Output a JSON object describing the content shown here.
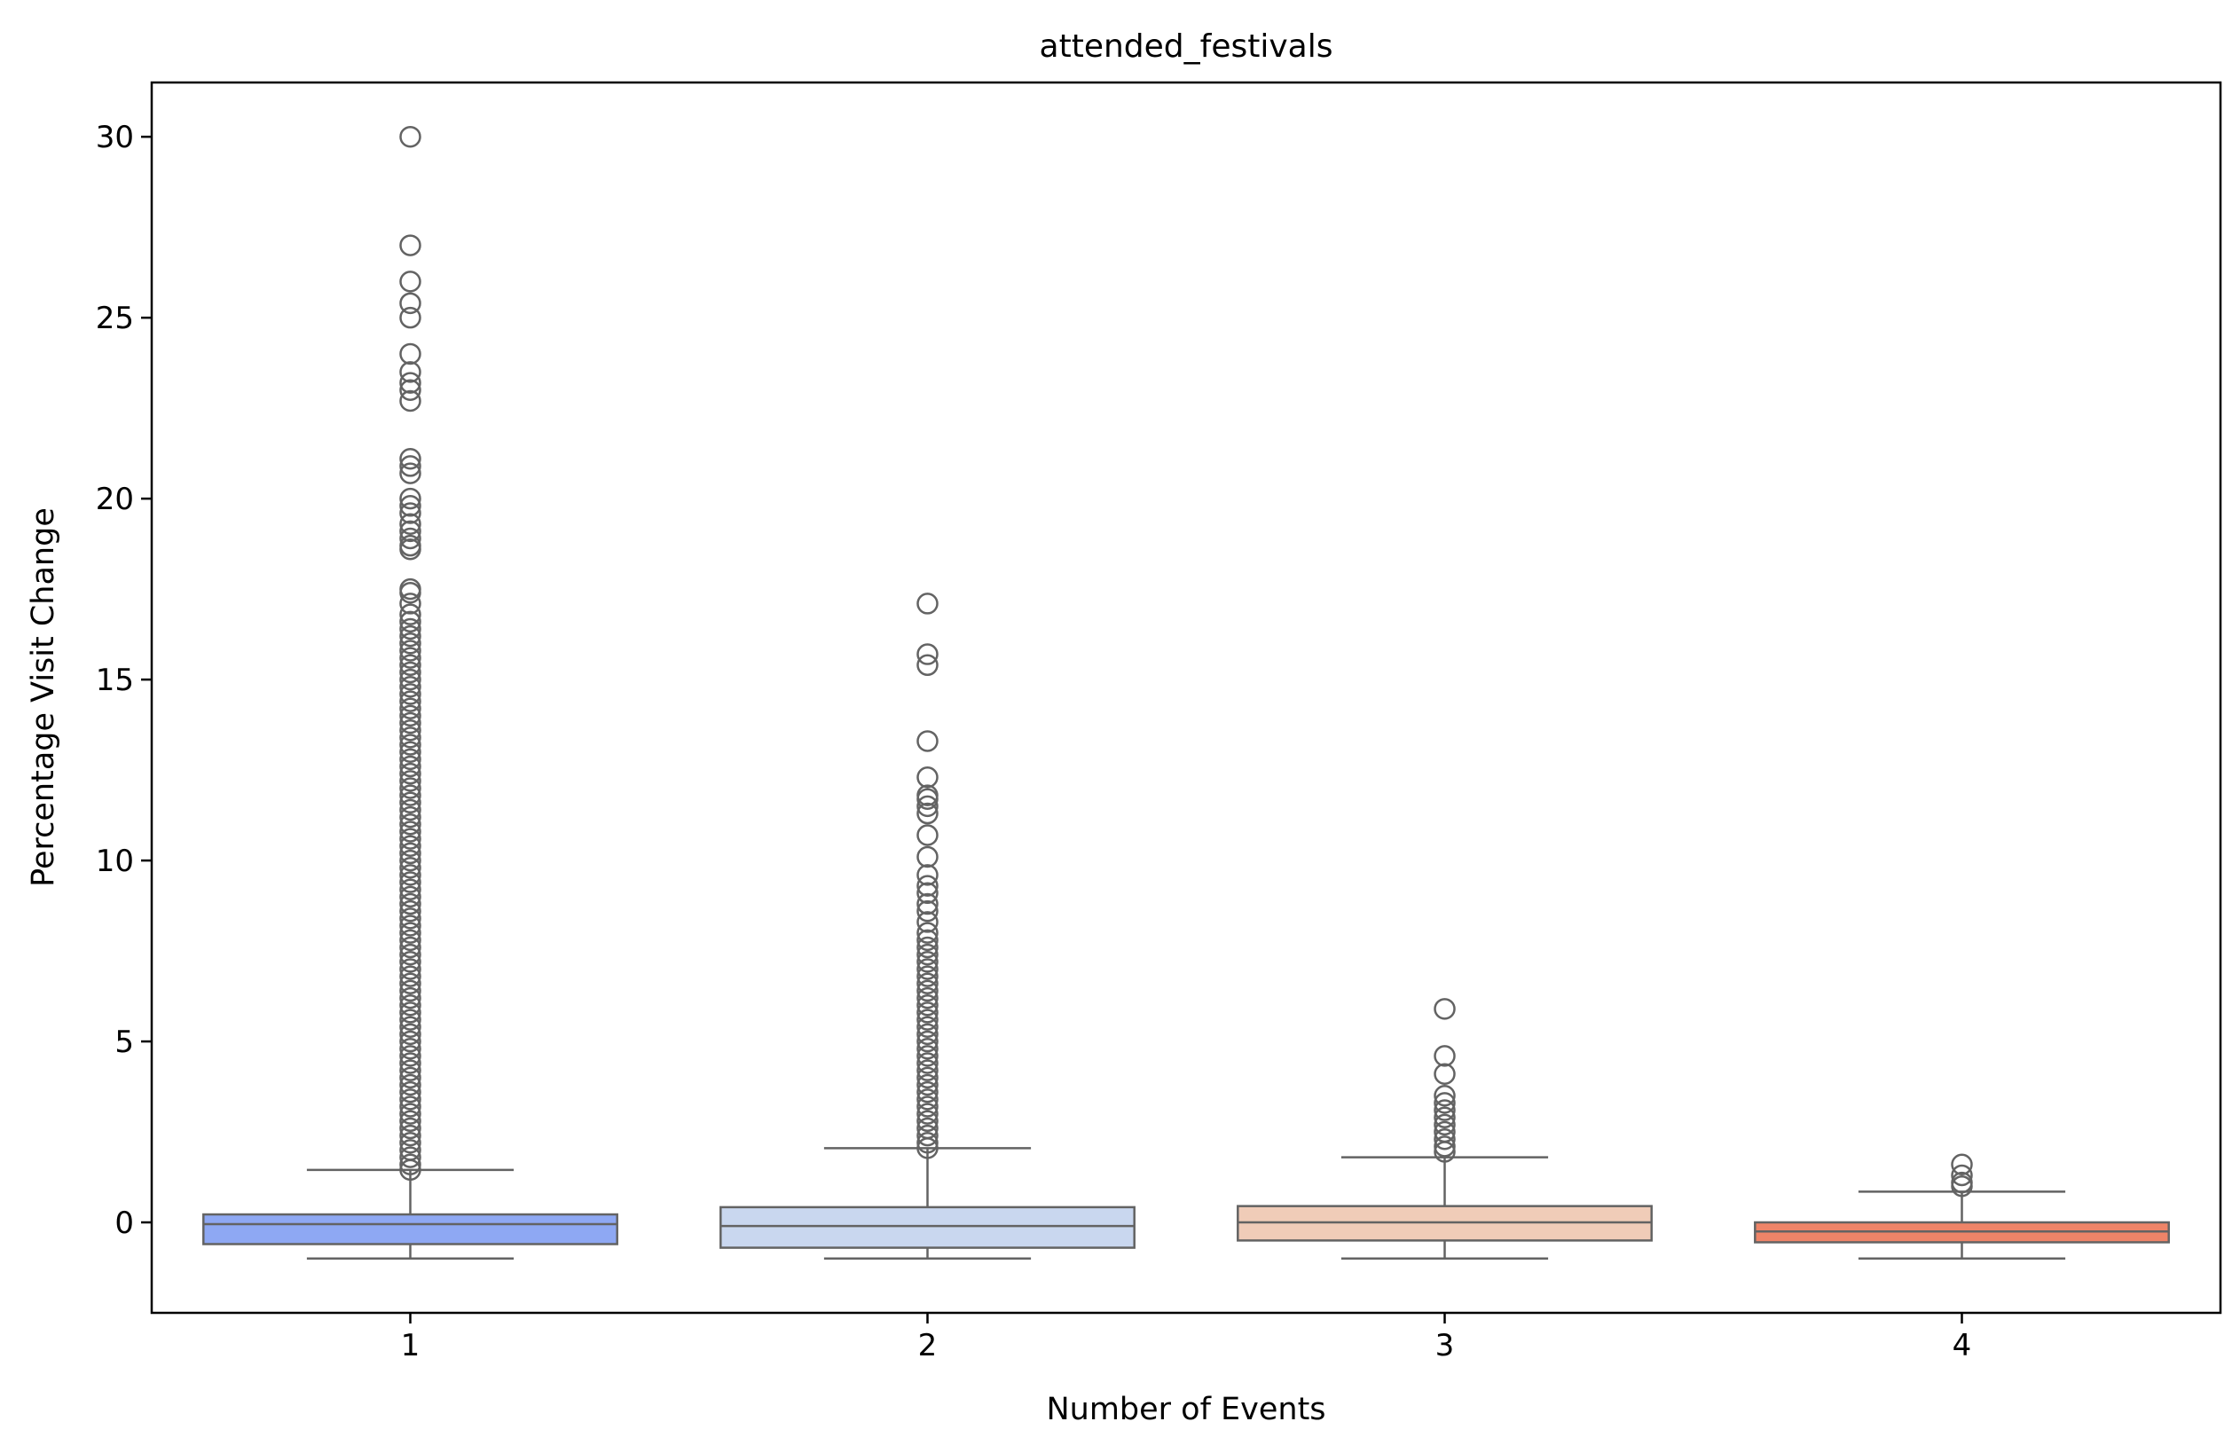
{
  "chart_data": {
    "type": "box",
    "title": "attended_festivals",
    "xlabel": "Number of Events",
    "ylabel": "Percentage Visit Change",
    "ylim": [
      -2.5,
      31.5
    ],
    "yticks": [
      0,
      5,
      10,
      15,
      20,
      25,
      30
    ],
    "grid": false,
    "legend": "none",
    "categories": [
      "1",
      "2",
      "3",
      "4"
    ],
    "boxes": [
      {
        "category": "1",
        "color": "#8EA8F3",
        "whisker_low": -1.0,
        "q1": -0.6,
        "median": -0.05,
        "q3": 0.22,
        "whisker_high": 1.45,
        "outliers": [
          30.0,
          27.0,
          26.0,
          25.4,
          25.0,
          24.0,
          23.5,
          23.2,
          23.0,
          22.7,
          21.1,
          20.9,
          20.7,
          20.0,
          19.8,
          19.6,
          19.3,
          19.1,
          18.9,
          18.7,
          18.6,
          17.5,
          17.4,
          17.1,
          16.8,
          16.6,
          16.4,
          16.2,
          16.0,
          15.8,
          15.6,
          15.4,
          15.2,
          15.0,
          14.8,
          14.6,
          14.4,
          14.2,
          14.0,
          13.8,
          13.6,
          13.4,
          13.2,
          13.0,
          12.8,
          12.6,
          12.4,
          12.2,
          12.0,
          11.8,
          11.6,
          11.4,
          11.2,
          11.0,
          10.8,
          10.6,
          10.4,
          10.2,
          10.0,
          9.8,
          9.6,
          9.4,
          9.2,
          9.0,
          8.8,
          8.6,
          8.4,
          8.2,
          8.0,
          7.8,
          7.6,
          7.4,
          7.2,
          7.0,
          6.8,
          6.6,
          6.4,
          6.2,
          6.0,
          5.8,
          5.6,
          5.4,
          5.2,
          5.0,
          4.8,
          4.6,
          4.4,
          4.2,
          4.0,
          3.8,
          3.6,
          3.4,
          3.2,
          3.0,
          2.8,
          2.6,
          2.4,
          2.2,
          2.0,
          1.8,
          1.6,
          1.45
        ]
      },
      {
        "category": "2",
        "color": "#C9D7EF",
        "whisker_low": -1.0,
        "q1": -0.7,
        "median": -0.1,
        "q3": 0.42,
        "whisker_high": 2.05,
        "outliers": [
          17.1,
          15.7,
          15.4,
          13.3,
          12.3,
          11.8,
          11.7,
          11.5,
          11.3,
          10.7,
          10.1,
          9.6,
          9.3,
          9.1,
          8.8,
          8.6,
          8.3,
          8.0,
          7.8,
          7.6,
          7.4,
          7.2,
          7.0,
          6.8,
          6.6,
          6.4,
          6.2,
          6.0,
          5.8,
          5.6,
          5.4,
          5.2,
          5.0,
          4.8,
          4.6,
          4.4,
          4.2,
          4.0,
          3.8,
          3.6,
          3.4,
          3.2,
          3.0,
          2.8,
          2.6,
          2.4,
          2.2,
          2.05
        ]
      },
      {
        "category": "3",
        "color": "#F0CCB8",
        "whisker_low": -1.0,
        "q1": -0.5,
        "median": 0.0,
        "q3": 0.45,
        "whisker_high": 1.8,
        "outliers": [
          5.9,
          4.6,
          4.1,
          3.5,
          3.3,
          3.1,
          2.9,
          2.7,
          2.5,
          2.3,
          2.1,
          1.95
        ]
      },
      {
        "category": "4",
        "color": "#EE8468",
        "whisker_low": -1.0,
        "q1": -0.55,
        "median": -0.25,
        "q3": 0.0,
        "whisker_high": 0.85,
        "outliers": [
          1.6,
          1.3,
          1.1,
          1.0
        ]
      }
    ]
  }
}
